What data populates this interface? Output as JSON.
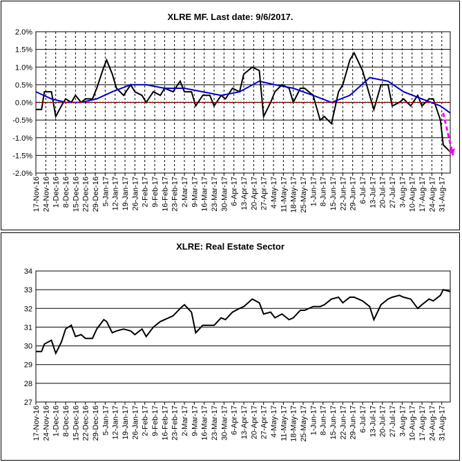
{
  "chart_data": [
    {
      "type": "line",
      "title": "XLRE MF. Last date: 9/6/2017.",
      "xlabel": "",
      "ylabel": "",
      "ylim": [
        -0.02,
        0.02
      ],
      "ytick_labels": [
        "2.0%",
        "1.5%",
        "1.0%",
        "0.5%",
        "0.0%",
        "-0.5%",
        "-1.0%",
        "-1.5%",
        "-2.0%"
      ],
      "x_tick_labels": [
        "17-Nov-16",
        "24-Nov-16",
        "1-Dec-16",
        "8-Dec-16",
        "15-Dec-16",
        "22-Dec-16",
        "29-Dec-16",
        "5-Jan-17",
        "12-Jan-17",
        "19-Jan-17",
        "26-Jan-17",
        "2-Feb-17",
        "9-Feb-17",
        "16-Feb-17",
        "23-Feb-17",
        "2-Mar-17",
        "9-Mar-17",
        "16-Mar-17",
        "23-Mar-17",
        "30-Mar-17",
        "6-Apr-17",
        "13-Apr-17",
        "20-Apr-17",
        "27-Apr-17",
        "4-May-17",
        "11-May-17",
        "18-May-17",
        "25-May-17",
        "1-Jun-17",
        "8-Jun-17",
        "15-Jun-17",
        "22-Jun-17",
        "29-Jun-17",
        "6-Jul-17",
        "13-Jul-17",
        "20-Jul-17",
        "27-Jul-17",
        "3-Aug-17",
        "10-Aug-17",
        "17-Aug-17",
        "24-Aug-17",
        "31-Aug-17"
      ],
      "grid": "vertical dashed, horizontal solid",
      "series": [
        {
          "color": "#000000",
          "x": [
            "2016-11-17",
            "2016-11-21",
            "2016-11-23",
            "2016-11-28",
            "2016-12-01",
            "2016-12-05",
            "2016-12-08",
            "2016-12-12",
            "2016-12-15",
            "2016-12-19",
            "2016-12-22",
            "2016-12-27",
            "2016-12-30",
            "2017-01-04",
            "2017-01-06",
            "2017-01-10",
            "2017-01-13",
            "2017-01-18",
            "2017-01-23",
            "2017-01-26",
            "2017-01-31",
            "2017-02-03",
            "2017-02-08",
            "2017-02-13",
            "2017-02-16",
            "2017-02-22",
            "2017-02-27",
            "2017-03-02",
            "2017-03-07",
            "2017-03-10",
            "2017-03-15",
            "2017-03-20",
            "2017-03-23",
            "2017-03-28",
            "2017-03-31",
            "2017-04-05",
            "2017-04-10",
            "2017-04-13",
            "2017-04-19",
            "2017-04-24",
            "2017-04-27",
            "2017-05-02",
            "2017-05-05",
            "2017-05-10",
            "2017-05-15",
            "2017-05-18",
            "2017-05-23",
            "2017-05-26",
            "2017-06-01",
            "2017-06-06",
            "2017-06-09",
            "2017-06-14",
            "2017-06-19",
            "2017-06-22",
            "2017-06-27",
            "2017-06-30",
            "2017-07-06",
            "2017-07-11",
            "2017-07-14",
            "2017-07-19",
            "2017-07-24",
            "2017-07-27",
            "2017-08-01",
            "2017-08-04",
            "2017-08-09",
            "2017-08-14",
            "2017-08-17",
            "2017-08-22",
            "2017-08-25",
            "2017-08-30",
            "2017-09-01",
            "2017-09-06"
          ],
          "values": [
            -0.002,
            -0.002,
            0.003,
            0.003,
            -0.004,
            -0.001,
            0.001,
            0.0,
            0.002,
            0.0,
            0.001,
            0.001,
            0.004,
            0.01,
            0.012,
            0.008,
            0.004,
            0.002,
            0.005,
            0.003,
            0.002,
            0.0,
            0.003,
            0.002,
            0.004,
            0.003,
            0.006,
            0.003,
            0.003,
            -0.001,
            0.002,
            0.002,
            -0.001,
            0.002,
            0.001,
            0.004,
            0.003,
            0.008,
            0.01,
            0.009,
            -0.004,
            0.0,
            0.003,
            0.005,
            0.004,
            0.0,
            0.004,
            0.004,
            0.002,
            -0.005,
            -0.004,
            -0.006,
            0.003,
            0.005,
            0.012,
            0.014,
            0.009,
            0.002,
            -0.002,
            0.005,
            0.005,
            -0.001,
            0.0,
            0.001,
            -0.001,
            0.002,
            -0.001,
            0.001,
            0.001,
            -0.005,
            -0.012,
            -0.014
          ]
        },
        {
          "color": "#0000cc",
          "x": [
            "2016-11-17",
            "2016-11-28",
            "2016-12-08",
            "2016-12-19",
            "2016-12-30",
            "2017-01-10",
            "2017-01-23",
            "2017-02-03",
            "2017-02-16",
            "2017-03-02",
            "2017-03-15",
            "2017-03-28",
            "2017-04-10",
            "2017-04-24",
            "2017-05-05",
            "2017-05-18",
            "2017-06-01",
            "2017-06-14",
            "2017-06-27",
            "2017-07-11",
            "2017-07-24",
            "2017-08-04",
            "2017-08-17",
            "2017-08-30",
            "2017-09-06"
          ],
          "values": [
            0.003,
            0.001,
            0.0,
            0.0,
            0.001,
            0.003,
            0.005,
            0.005,
            0.004,
            0.004,
            0.003,
            0.002,
            0.003,
            0.006,
            0.005,
            0.004,
            0.002,
            0.0,
            0.002,
            0.007,
            0.006,
            0.003,
            0.001,
            -0.001,
            -0.003
          ]
        },
        {
          "color": "#cc0000",
          "x": [
            "2016-11-17",
            "2017-09-06"
          ],
          "values": [
            0.0,
            0.0
          ]
        }
      ],
      "annotations": [
        {
          "type": "arrow",
          "color": "#ff00ff",
          "from": [
            "2017-09-01",
            -0.003
          ],
          "to": [
            "2017-09-08",
            -0.015
          ]
        }
      ]
    },
    {
      "type": "line",
      "title": "XLRE: Real Estate Sector",
      "xlabel": "",
      "ylabel": "",
      "ylim": [
        27,
        34
      ],
      "ytick_labels": [
        "34",
        "33",
        "32",
        "31",
        "30",
        "29",
        "28",
        "27"
      ],
      "x_tick_labels": [
        "17-Nov-16",
        "24-Nov-16",
        "1-Dec-16",
        "8-Dec-16",
        "15-Dec-16",
        "22-Dec-16",
        "29-Dec-16",
        "5-Jan-17",
        "12-Jan-17",
        "19-Jan-17",
        "26-Jan-17",
        "2-Feb-17",
        "9-Feb-17",
        "16-Feb-17",
        "23-Feb-17",
        "2-Mar-17",
        "9-Mar-17",
        "16-Mar-17",
        "23-Mar-17",
        "30-Mar-17",
        "6-Apr-17",
        "13-Apr-17",
        "20-Apr-17",
        "27-Apr-17",
        "4-May-17",
        "11-May-17",
        "18-May-17",
        "25-May-17",
        "1-Jun-17",
        "8-Jun-17",
        "15-Jun-17",
        "22-Jun-17",
        "29-Jun-17",
        "6-Jul-17",
        "13-Jul-17",
        "20-Jul-17",
        "27-Jul-17",
        "3-Aug-17",
        "10-Aug-17",
        "17-Aug-17",
        "24-Aug-17",
        "31-Aug-17"
      ],
      "grid": "horizontal solid",
      "series": [
        {
          "color": "#000000",
          "x": [
            "2016-11-17",
            "2016-11-21",
            "2016-11-23",
            "2016-11-28",
            "2016-12-01",
            "2016-12-05",
            "2016-12-08",
            "2016-12-12",
            "2016-12-15",
            "2016-12-19",
            "2016-12-22",
            "2016-12-27",
            "2016-12-30",
            "2017-01-04",
            "2017-01-06",
            "2017-01-10",
            "2017-01-13",
            "2017-01-18",
            "2017-01-23",
            "2017-01-26",
            "2017-01-31",
            "2017-02-03",
            "2017-02-08",
            "2017-02-13",
            "2017-02-16",
            "2017-02-22",
            "2017-02-27",
            "2017-03-02",
            "2017-03-07",
            "2017-03-10",
            "2017-03-15",
            "2017-03-20",
            "2017-03-23",
            "2017-03-28",
            "2017-03-31",
            "2017-04-05",
            "2017-04-10",
            "2017-04-13",
            "2017-04-19",
            "2017-04-24",
            "2017-04-27",
            "2017-05-02",
            "2017-05-05",
            "2017-05-10",
            "2017-05-15",
            "2017-05-18",
            "2017-05-23",
            "2017-05-26",
            "2017-06-01",
            "2017-06-06",
            "2017-06-09",
            "2017-06-14",
            "2017-06-19",
            "2017-06-22",
            "2017-06-27",
            "2017-06-30",
            "2017-07-06",
            "2017-07-11",
            "2017-07-14",
            "2017-07-19",
            "2017-07-24",
            "2017-07-27",
            "2017-08-01",
            "2017-08-04",
            "2017-08-09",
            "2017-08-14",
            "2017-08-17",
            "2017-08-22",
            "2017-08-25",
            "2017-08-30",
            "2017-09-01",
            "2017-09-06"
          ],
          "values": [
            29.7,
            29.7,
            30.1,
            30.3,
            29.6,
            30.2,
            30.9,
            31.1,
            30.5,
            30.6,
            30.4,
            30.4,
            30.9,
            31.4,
            31.3,
            30.7,
            30.8,
            30.9,
            30.8,
            30.6,
            30.9,
            30.5,
            31.0,
            31.3,
            31.4,
            31.6,
            32.0,
            32.2,
            31.8,
            30.7,
            31.1,
            31.1,
            31.1,
            31.5,
            31.4,
            31.8,
            32.0,
            32.1,
            32.5,
            32.3,
            31.7,
            31.8,
            31.5,
            31.7,
            31.4,
            31.5,
            31.9,
            31.9,
            32.1,
            32.1,
            32.2,
            32.5,
            32.6,
            32.3,
            32.6,
            32.6,
            32.4,
            32.1,
            31.4,
            32.2,
            32.5,
            32.6,
            32.7,
            32.6,
            32.5,
            32.0,
            32.2,
            32.5,
            32.4,
            32.7,
            33.0,
            32.9
          ]
        }
      ]
    }
  ]
}
